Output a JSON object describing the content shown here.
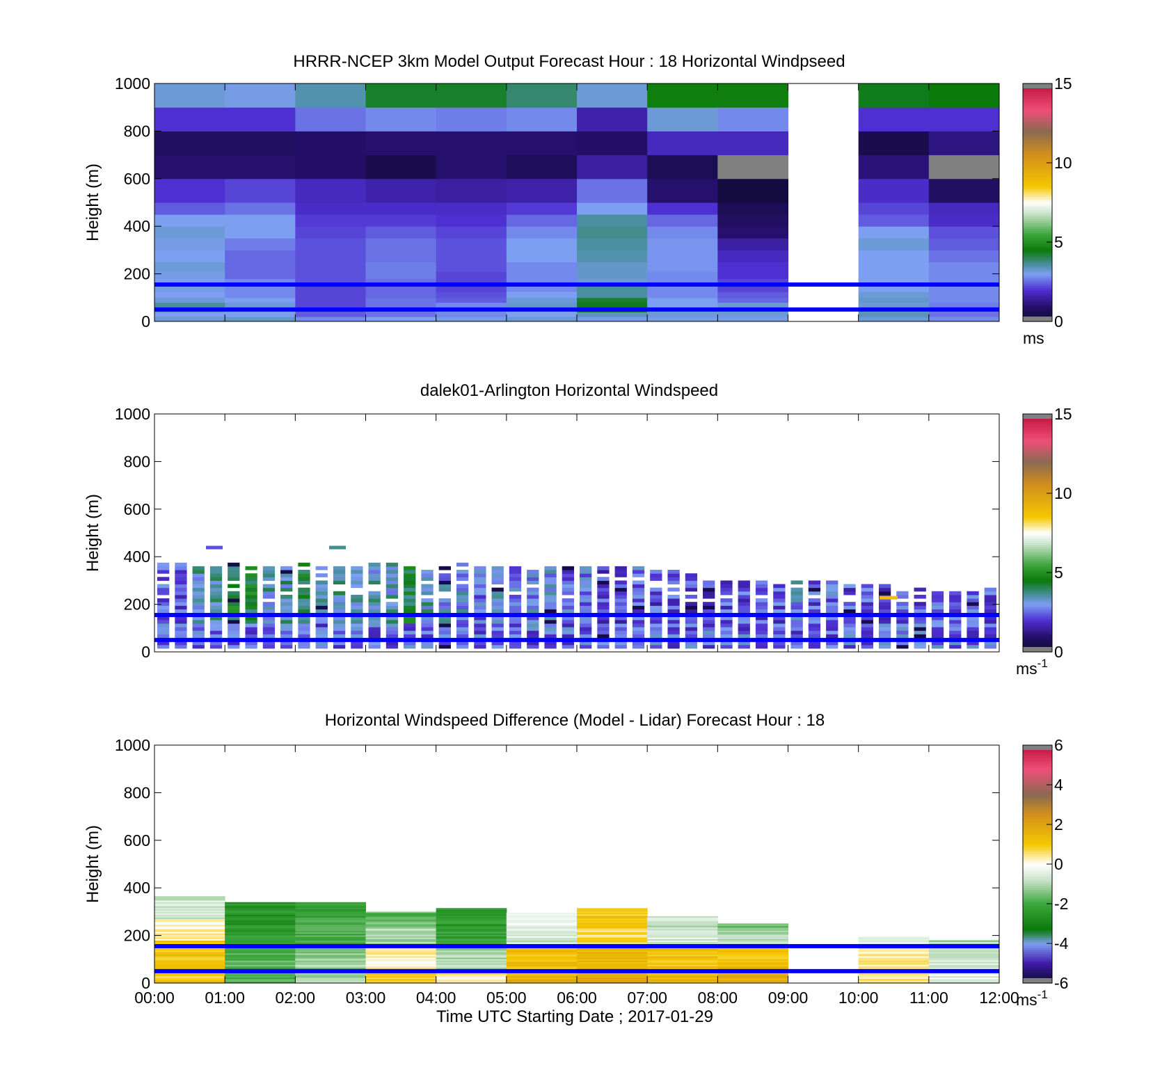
{
  "colors": {
    "hline": "#0000ff"
  },
  "speed_palette": [
    {
      "v": 0.0,
      "c": "#0c0a2e"
    },
    {
      "v": 1.0,
      "c": "#26106e"
    },
    {
      "v": 2.0,
      "c": "#4e2fd2"
    },
    {
      "v": 3.0,
      "c": "#7d9ff2"
    },
    {
      "v": 3.6,
      "c": "#4a8fa0"
    },
    {
      "v": 4.5,
      "c": "#0a7a0a"
    },
    {
      "v": 5.5,
      "c": "#3ca63c"
    },
    {
      "v": 6.8,
      "c": "#c8e2c8"
    },
    {
      "v": 7.5,
      "c": "#ffffff"
    },
    {
      "v": 8.5,
      "c": "#f5c800"
    },
    {
      "v": 10.5,
      "c": "#d4901a"
    },
    {
      "v": 12.0,
      "c": "#8b6a52"
    },
    {
      "v": 13.3,
      "c": "#ee4f78"
    },
    {
      "v": 15.0,
      "c": "#c0103a"
    }
  ],
  "diff_palette": [
    {
      "v": -6.0,
      "c": "#0c0a2e"
    },
    {
      "v": -5.0,
      "c": "#3e1aa8"
    },
    {
      "v": -4.0,
      "c": "#7d9ff2"
    },
    {
      "v": -3.3,
      "c": "#0a7a0a"
    },
    {
      "v": -2.0,
      "c": "#3ca63c"
    },
    {
      "v": -0.8,
      "c": "#c8e2c8"
    },
    {
      "v": 0.0,
      "c": "#ffffff"
    },
    {
      "v": 1.0,
      "c": "#f5c800"
    },
    {
      "v": 2.5,
      "c": "#d4901a"
    },
    {
      "v": 3.5,
      "c": "#8b6a52"
    },
    {
      "v": 4.8,
      "c": "#ee4f78"
    },
    {
      "v": 6.0,
      "c": "#c0103a"
    }
  ],
  "x_ticks": [
    "00:00",
    "01:00",
    "02:00",
    "03:00",
    "04:00",
    "05:00",
    "06:00",
    "07:00",
    "08:00",
    "09:00",
    "10:00",
    "11:00",
    "12:00"
  ],
  "xlabel": "Time UTC  Starting Date ; 2017-01-29",
  "chart_data": [
    {
      "type": "heatmap",
      "title": "HRRR-NCEP 3km Model Output   Forecast Hour : 18 Horizontal Windpseed",
      "ylabel": "Height (m)",
      "ylim": [
        0,
        1000
      ],
      "y_ticks": [
        "0",
        "200",
        "400",
        "600",
        "800",
        "1000"
      ],
      "x_range_hours": [
        0,
        12
      ],
      "reference_lines_m": [
        50,
        155
      ],
      "colorbar": {
        "min": 0,
        "max": 15,
        "ticks": [
          "0",
          "5",
          "10",
          "15"
        ],
        "unit": "ms",
        "unit_sup": ""
      },
      "x_bin_hours": 1,
      "z_bins_m": [
        0,
        20,
        40,
        60,
        80,
        100,
        125,
        150,
        180,
        210,
        250,
        300,
        350,
        400,
        450,
        500,
        600,
        700,
        800,
        900,
        1000
      ],
      "values": [
        [
          3.2,
          3.0,
          3.4,
          3.6,
          3.2,
          3.0,
          3.1,
          3.0,
          3.1,
          3.2,
          3.0,
          3.1,
          3.2,
          3.0,
          2.4,
          2.0,
          1.0,
          0.8,
          2.0,
          3.2
        ],
        [
          3.3,
          3.0,
          3.2,
          3.2,
          3.0,
          2.8,
          2.8,
          2.8,
          2.5,
          2.5,
          2.5,
          2.7,
          3.0,
          3.0,
          2.6,
          2.2,
          1.0,
          0.8,
          2.0,
          3.1
        ],
        [
          2.8,
          2.4,
          2.3,
          2.2,
          2.2,
          2.2,
          2.2,
          2.3,
          2.3,
          2.3,
          2.3,
          2.3,
          2.2,
          2.1,
          1.9,
          1.8,
          0.9,
          0.9,
          2.6,
          3.5
        ],
        [
          3.0,
          2.6,
          2.6,
          2.6,
          2.6,
          2.5,
          2.5,
          2.6,
          2.7,
          2.7,
          2.6,
          2.6,
          2.4,
          2.1,
          1.9,
          1.6,
          0.5,
          1.0,
          2.8,
          4.3
        ],
        [
          3.1,
          2.8,
          2.8,
          2.8,
          2.4,
          2.3,
          2.2,
          2.2,
          2.2,
          2.3,
          2.3,
          2.3,
          2.2,
          2.0,
          1.9,
          1.5,
          1.0,
          1.0,
          2.7,
          4.3
        ],
        [
          3.2,
          3.0,
          3.1,
          3.3,
          3.2,
          3.0,
          2.8,
          2.8,
          2.8,
          2.8,
          3.0,
          3.0,
          2.8,
          2.5,
          2.1,
          1.6,
          0.7,
          1.0,
          2.8,
          3.9
        ],
        [
          3.1,
          3.4,
          4.3,
          4.4,
          4.3,
          3.6,
          3.6,
          3.2,
          3.3,
          3.3,
          3.5,
          3.6,
          3.7,
          3.6,
          3.0,
          2.6,
          1.5,
          0.9,
          1.6,
          3.2
        ],
        [
          3.1,
          3.2,
          3.2,
          3.0,
          3.0,
          2.8,
          2.8,
          2.8,
          2.8,
          2.9,
          2.9,
          2.9,
          2.8,
          2.5,
          2.0,
          1.0,
          0.6,
          1.8,
          3.2,
          4.6
        ],
        [
          3.1,
          3.2,
          3.3,
          3.2,
          2.5,
          2.4,
          2.2,
          2.2,
          2.0,
          2.0,
          1.8,
          1.5,
          1.0,
          0.8,
          0.6,
          0.3,
          15.8,
          1.8,
          2.8,
          4.6
        ],
        [
          null,
          null,
          null,
          null,
          null,
          null,
          null,
          null,
          null,
          null,
          null,
          null,
          null,
          null,
          null,
          null,
          null,
          null,
          null,
          null
        ],
        [
          3.2,
          3.4,
          3.3,
          3.2,
          3.3,
          3.2,
          3.0,
          3.0,
          3.0,
          3.0,
          3.0,
          3.2,
          3.0,
          2.4,
          2.2,
          1.9,
          1.1,
          0.5,
          2.0,
          4.4
        ],
        [
          2.8,
          2.6,
          2.6,
          2.7,
          2.8,
          2.8,
          2.8,
          2.8,
          2.8,
          2.8,
          2.6,
          2.4,
          2.3,
          1.9,
          1.8,
          0.8,
          15.8,
          1.2,
          2.0,
          4.5
        ]
      ]
    },
    {
      "type": "heatmap",
      "title": "dalek01-Arlington  Horizontal Windspeed",
      "ylabel": "Height (m)",
      "ylim": [
        0,
        1000
      ],
      "y_ticks": [
        "0",
        "200",
        "400",
        "600",
        "800",
        "1000"
      ],
      "x_range_hours": [
        0,
        12
      ],
      "reference_lines_m": [
        50,
        155
      ],
      "colorbar": {
        "min": 0,
        "max": 15,
        "ticks": [
          "0",
          "5",
          "10",
          "15"
        ],
        "unit": "ms",
        "unit_sup": "-1"
      },
      "x_bin_hours": 0.25,
      "z_bin_m": 15,
      "top_m": [
        365,
        365,
        360,
        360,
        365,
        360,
        360,
        360,
        370,
        370,
        370,
        375,
        375,
        365,
        365,
        360,
        360,
        365,
        360,
        360,
        360,
        360,
        360,
        360,
        360,
        360,
        355,
        350,
        345,
        335,
        320,
        300,
        300,
        300,
        300,
        295,
        290,
        290,
        290,
        285,
        285,
        280,
        275,
        265,
        255,
        250,
        255,
        260
      ],
      "base_level": [
        2.4,
        2.4,
        3.4,
        3.6,
        4.4,
        4.4,
        3.4,
        3.5,
        4.2,
        3.6,
        3.5,
        3.5,
        3.3,
        3.4,
        4.3,
        3.4,
        3.1,
        3.0,
        2.7,
        3.1,
        2.8,
        2.8,
        2.9,
        2.5,
        2.7,
        2.1,
        2.2,
        2.5,
        2.2,
        2.3,
        2.1,
        2.1,
        2.2,
        2.3,
        2.2,
        2.3,
        3.0,
        2.4,
        2.5,
        2.3,
        2.4,
        2.3,
        2.5,
        2.3,
        2.5,
        2.5,
        2.6,
        2.4
      ],
      "speckle_m_hours": [
        [
          0.85,
          440,
          2.3
        ],
        [
          2.6,
          440,
          3.7
        ]
      ]
    },
    {
      "type": "heatmap",
      "title": "Horizontal Windspeed Difference (Model - Lidar) Forecast Hour : 18",
      "ylabel": "Height (m)",
      "ylim": [
        0,
        1000
      ],
      "y_ticks": [
        "0",
        "200",
        "400",
        "600",
        "800",
        "1000"
      ],
      "x_range_hours": [
        0,
        12
      ],
      "reference_lines_m": [
        50,
        155
      ],
      "colorbar": {
        "min": -6,
        "max": 6,
        "ticks": [
          "-6",
          "-4",
          "-2",
          "0",
          "2",
          "4",
          "6"
        ],
        "unit": "ms",
        "unit_sup": "-1"
      },
      "x_bin_hours": 1,
      "columns": [
        {
          "top_m": 365,
          "bands": [
            [
              0,
              60,
              1.0
            ],
            [
              60,
              180,
              1.1
            ],
            [
              180,
              270,
              0.2
            ],
            [
              270,
              365,
              -0.6
            ]
          ]
        },
        {
          "top_m": 340,
          "bands": [
            [
              0,
              60,
              -2.0
            ],
            [
              60,
              160,
              -1.8
            ],
            [
              160,
              240,
              -2.3
            ],
            [
              240,
              340,
              -2.6
            ]
          ]
        },
        {
          "top_m": 340,
          "bands": [
            [
              0,
              60,
              -1.0
            ],
            [
              60,
              160,
              -1.2
            ],
            [
              160,
              240,
              -2.0
            ],
            [
              240,
              340,
              -2.1
            ]
          ]
        },
        {
          "top_m": 300,
          "bands": [
            [
              0,
              60,
              1.0
            ],
            [
              60,
              150,
              0.2
            ],
            [
              150,
              230,
              -1.0
            ],
            [
              230,
              300,
              -1.7
            ]
          ]
        },
        {
          "top_m": 315,
          "bands": [
            [
              0,
              60,
              0.3
            ],
            [
              60,
              150,
              -1.0
            ],
            [
              150,
              230,
              -2.2
            ],
            [
              230,
              315,
              -2.4
            ]
          ]
        },
        {
          "top_m": 295,
          "bands": [
            [
              0,
              60,
              1.6
            ],
            [
              60,
              150,
              1.2
            ],
            [
              150,
              230,
              -0.6
            ],
            [
              230,
              295,
              -0.4
            ]
          ]
        },
        {
          "top_m": 315,
          "bands": [
            [
              0,
              60,
              1.9
            ],
            [
              60,
              150,
              1.4
            ],
            [
              150,
              230,
              0.6
            ],
            [
              230,
              315,
              1.0
            ]
          ]
        },
        {
          "top_m": 280,
          "bands": [
            [
              0,
              60,
              1.4
            ],
            [
              60,
              150,
              1.2
            ],
            [
              150,
              230,
              -0.6
            ],
            [
              230,
              280,
              -0.8
            ]
          ]
        },
        {
          "top_m": 250,
          "bands": [
            [
              0,
              60,
              1.7
            ],
            [
              60,
              150,
              1.2
            ],
            [
              150,
              230,
              -1.0
            ],
            [
              230,
              250,
              -1.4
            ]
          ]
        },
        {
          "top_m": 0,
          "bands": []
        },
        {
          "top_m": 195,
          "bands": [
            [
              0,
              60,
              0.5
            ],
            [
              60,
              150,
              0.4
            ],
            [
              150,
              195,
              -0.3
            ]
          ]
        },
        {
          "top_m": 180,
          "bands": [
            [
              0,
              60,
              -0.4
            ],
            [
              60,
              150,
              -0.6
            ],
            [
              150,
              180,
              -1.0
            ]
          ]
        }
      ]
    }
  ]
}
